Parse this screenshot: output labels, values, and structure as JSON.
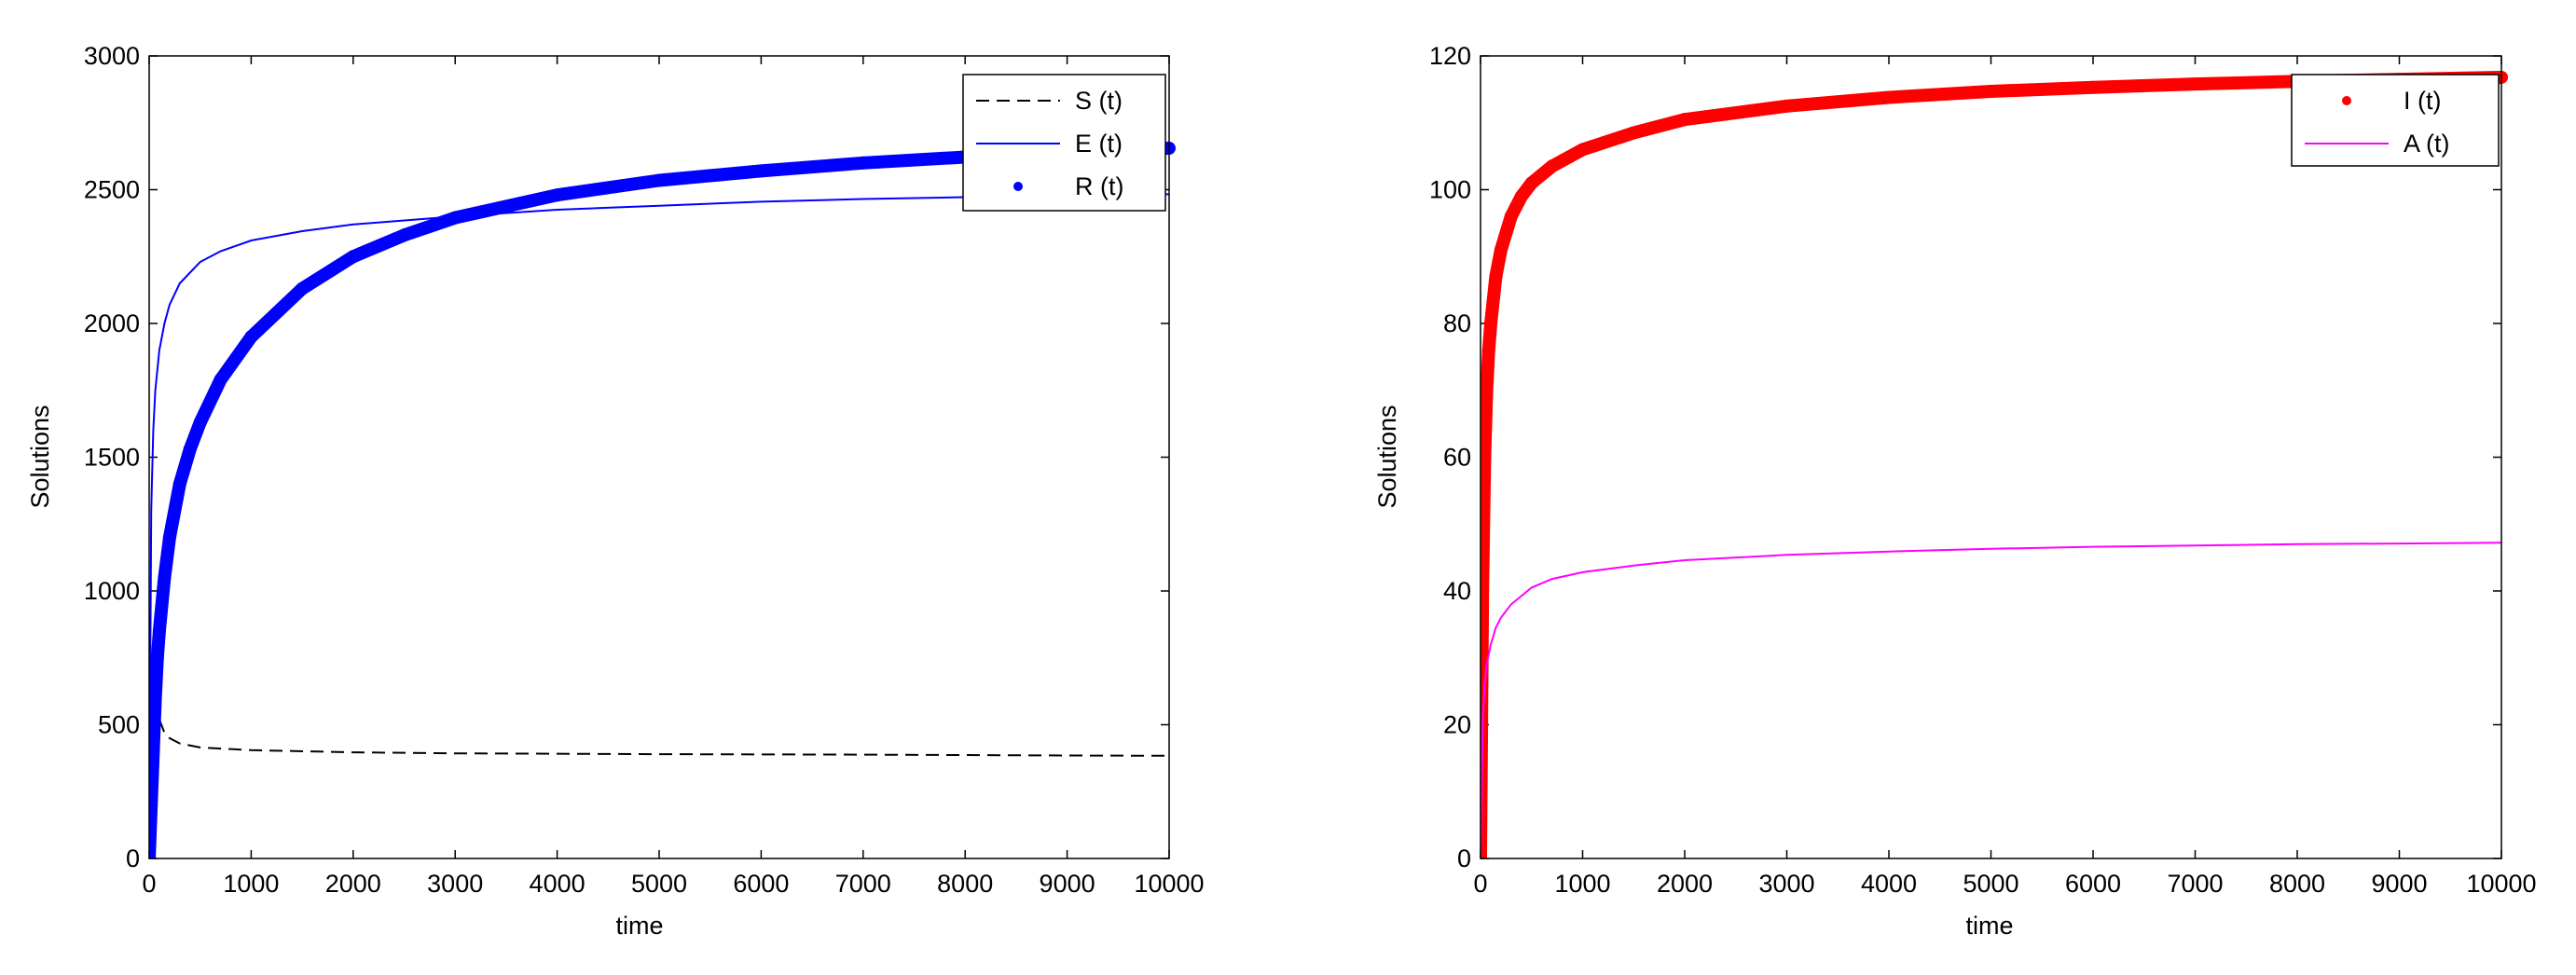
{
  "chart_data": [
    {
      "type": "line",
      "title": "",
      "xlabel": "time",
      "ylabel": "Solutions",
      "xlim": [
        0,
        10000
      ],
      "ylim": [
        0,
        3000
      ],
      "xticks": [
        0,
        1000,
        2000,
        3000,
        4000,
        5000,
        6000,
        7000,
        8000,
        9000,
        10000
      ],
      "yticks": [
        0,
        500,
        1000,
        1500,
        2000,
        2500,
        3000
      ],
      "xtick_labels": [
        "0",
        "1000",
        "2000",
        "3000",
        "4000",
        "5000",
        "6000",
        "7000",
        "8000",
        "9000",
        "10000"
      ],
      "ytick_labels": [
        "0",
        "500",
        "1000",
        "1500",
        "2000",
        "2500",
        "3000"
      ],
      "grid": false,
      "legend_position": "top-right",
      "series": [
        {
          "name": "S (t)",
          "style": "dashed",
          "color": "#000000",
          "x": [
            0,
            30,
            60,
            100,
            150,
            200,
            300,
            500,
            1000,
            2000,
            3000,
            5000,
            7000,
            9000,
            10000
          ],
          "y": [
            0,
            300,
            520,
            520,
            470,
            450,
            430,
            415,
            405,
            397,
            393,
            390,
            388,
            385,
            384
          ]
        },
        {
          "name": "E (t)",
          "style": "solid",
          "color": "#0000ff",
          "x": [
            0,
            20,
            40,
            60,
            100,
            150,
            200,
            300,
            500,
            700,
            1000,
            1500,
            2000,
            3000,
            4000,
            5000,
            6000,
            7000,
            8000,
            9000,
            10000
          ],
          "y": [
            0,
            1300,
            1600,
            1750,
            1900,
            2000,
            2070,
            2150,
            2230,
            2270,
            2310,
            2345,
            2370,
            2400,
            2425,
            2440,
            2455,
            2465,
            2472,
            2478,
            2483
          ]
        },
        {
          "name": "R (t)",
          "style": "markers",
          "color": "#0000ff",
          "x": [
            0,
            20,
            40,
            60,
            80,
            100,
            150,
            200,
            300,
            400,
            500,
            700,
            1000,
            1500,
            2000,
            2500,
            3000,
            4000,
            5000,
            6000,
            7000,
            8000,
            9000,
            10000
          ],
          "y": [
            0,
            200,
            400,
            600,
            750,
            850,
            1050,
            1200,
            1400,
            1530,
            1630,
            1790,
            1950,
            2130,
            2250,
            2330,
            2395,
            2480,
            2535,
            2570,
            2600,
            2622,
            2640,
            2655
          ]
        }
      ]
    },
    {
      "type": "line",
      "title": "",
      "xlabel": "time",
      "ylabel": "Solutions",
      "xlim": [
        0,
        10000
      ],
      "ylim": [
        0,
        120
      ],
      "xticks": [
        0,
        1000,
        2000,
        3000,
        4000,
        5000,
        6000,
        7000,
        8000,
        9000,
        10000
      ],
      "yticks": [
        0,
        20,
        40,
        60,
        80,
        100,
        120
      ],
      "xtick_labels": [
        "0",
        "1000",
        "2000",
        "3000",
        "4000",
        "5000",
        "6000",
        "7000",
        "8000",
        "9000",
        "10000"
      ],
      "ytick_labels": [
        "0",
        "20",
        "40",
        "60",
        "80",
        "100",
        "120"
      ],
      "grid": false,
      "legend_position": "top-right",
      "series": [
        {
          "name": "I (t)",
          "style": "markers",
          "color": "#ff0000",
          "x": [
            0,
            20,
            40,
            60,
            80,
            100,
            150,
            200,
            300,
            400,
            500,
            700,
            1000,
            1500,
            2000,
            3000,
            4000,
            5000,
            6000,
            7000,
            8000,
            9000,
            10000
          ],
          "y": [
            0,
            40,
            60,
            70,
            76,
            80,
            87,
            91,
            96,
            99,
            101,
            103.5,
            106,
            108.5,
            110.5,
            112.5,
            113.8,
            114.7,
            115.3,
            115.8,
            116.2,
            116.5,
            116.8
          ]
        },
        {
          "name": "A (t)",
          "style": "solid",
          "color": "#ff00ff",
          "x": [
            0,
            20,
            40,
            60,
            100,
            150,
            200,
            300,
            500,
            700,
            1000,
            1500,
            2000,
            3000,
            4000,
            5000,
            6000,
            7000,
            8000,
            9000,
            10000
          ],
          "y": [
            0,
            20,
            26,
            29,
            32,
            34.5,
            36,
            38,
            40.5,
            41.8,
            42.8,
            43.8,
            44.6,
            45.4,
            45.9,
            46.3,
            46.6,
            46.8,
            47.0,
            47.1,
            47.2
          ]
        }
      ]
    }
  ]
}
